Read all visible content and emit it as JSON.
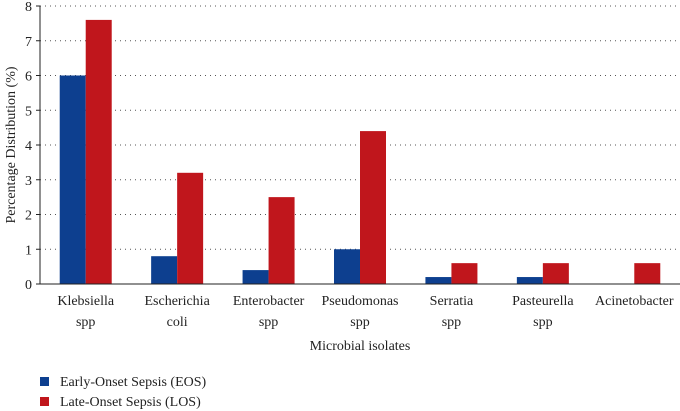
{
  "chart_data": {
    "type": "bar",
    "categories": [
      [
        "Klebsiella",
        "spp"
      ],
      [
        "Escherichia",
        "coli"
      ],
      [
        "Enterobacter",
        "spp"
      ],
      [
        "Pseudomonas",
        "spp"
      ],
      [
        "Serratia",
        "spp"
      ],
      [
        "Pasteurella",
        "spp"
      ],
      [
        "Acinetobacter"
      ]
    ],
    "series": [
      {
        "name": "Early-Onset Sepsis (EOS)",
        "color": "#0d3f8f",
        "values": [
          6.0,
          0.8,
          0.4,
          1.0,
          0.2,
          0.2,
          0
        ]
      },
      {
        "name": "Late-Onset Sepsis (LOS)",
        "color": "#c0161c",
        "values": [
          7.6,
          3.2,
          2.5,
          4.4,
          0.6,
          0.6,
          0.6
        ]
      }
    ],
    "xlabel": "Microbial isolates",
    "ylabel": "Percentage Distribution (%)",
    "ylim": [
      0,
      8
    ],
    "yticks": [
      0,
      1,
      2,
      3,
      4,
      5,
      6,
      7,
      8
    ],
    "grid": "horizontal-dotted",
    "legend_position": "bottom-left"
  }
}
